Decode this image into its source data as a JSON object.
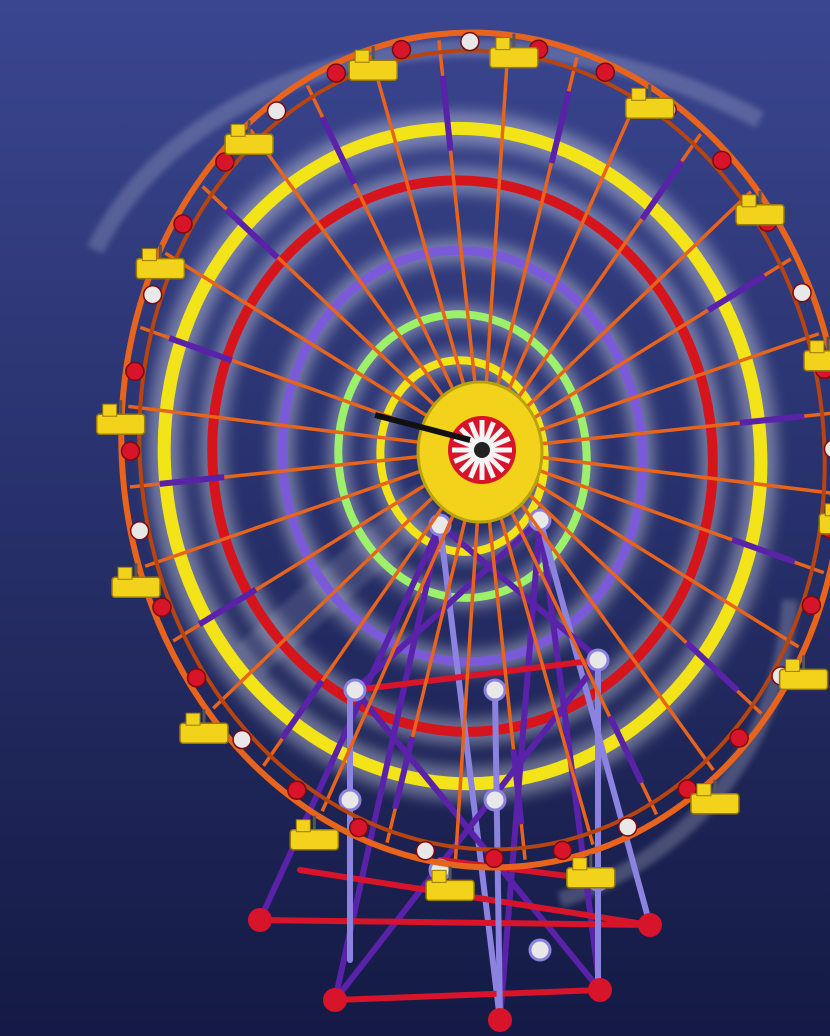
{
  "image": {
    "subject": "ferris-wheel-construction-toy-render",
    "background": {
      "top": "#3a4690",
      "bottom": "#141a44"
    },
    "colors": {
      "rim": "#e8641c",
      "rim_dark": "#b84410",
      "ring_yellow": "#f2e418",
      "ring_red": "#d6141c",
      "ring_purple": "#7a5ad8",
      "ring_green": "#9cf06a",
      "tower_purple": "#5a22a8",
      "tower_lavender": "#8c82e0",
      "tower_red": "#d8142a",
      "connector_red": "#d8142a",
      "connector_white": "#e8e8e8",
      "gondola_yellow": "#f2d21a",
      "hub_white": "#f4f4f4",
      "motion_glow": "#ffffff"
    },
    "gondola_count": 16,
    "spoke_count": 32
  }
}
